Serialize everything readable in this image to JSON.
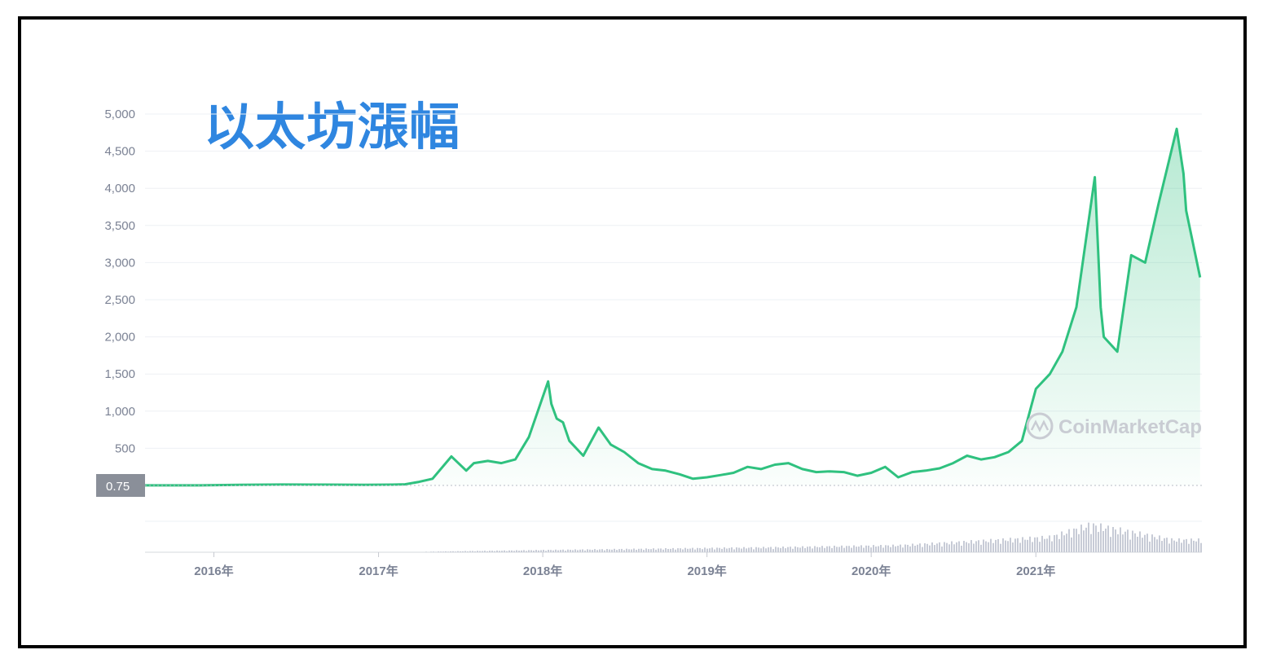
{
  "title": "以太坊漲幅",
  "watermark": "CoinMarketCap",
  "price_label": "0.75",
  "colors": {
    "line": "#2fc17f",
    "area_top": "#2fc17f",
    "volume": "#c7cbd6",
    "axis_text": "#7b8294",
    "grid": "#eef0f4",
    "title": "#2f86e0",
    "price_tag_bg": "#8a8f99"
  },
  "chart_data": {
    "type": "area",
    "title": "以太坊漲幅",
    "xlabel": "",
    "ylabel": "",
    "ylim": [
      0,
      5000
    ],
    "y_ticks": [
      "5,000",
      "4,500",
      "4,000",
      "3,500",
      "3,000",
      "2,500",
      "2,000",
      "1,500",
      "1,000",
      "500"
    ],
    "x_ticks": [
      "2016年",
      "2017年",
      "2018年",
      "2019年",
      "2020年",
      "2021年"
    ],
    "grid": true,
    "series": [
      {
        "x": [
          "2015-08",
          "2015-12",
          "2016-03",
          "2016-06",
          "2016-09",
          "2016-12",
          "2017-02",
          "2017-03",
          "2017-04",
          "2017-05",
          "2017-06-12",
          "2017-07-15",
          "2017-08",
          "2017-09",
          "2017-10",
          "2017-11",
          "2017-12",
          "2018-01-13",
          "2018-01-20",
          "2018-02",
          "2018-02-15",
          "2018-03",
          "2018-04",
          "2018-05-05",
          "2018-06",
          "2018-07",
          "2018-08",
          "2018-09",
          "2018-10",
          "2018-11",
          "2018-12",
          "2019-01",
          "2019-02",
          "2019-03",
          "2019-04",
          "2019-05",
          "2019-06",
          "2019-07",
          "2019-08",
          "2019-09",
          "2019-10",
          "2019-11",
          "2019-12",
          "2020-01",
          "2020-02",
          "2020-03",
          "2020-04",
          "2020-05",
          "2020-06",
          "2020-07",
          "2020-08",
          "2020-09",
          "2020-10",
          "2020-11",
          "2020-12",
          "2021-01",
          "2021-02",
          "2021-03",
          "2021-04",
          "2021-05-12",
          "2021-05-25",
          "2021-06",
          "2021-07",
          "2021-08",
          "2021-09",
          "2021-10",
          "2021-11-10",
          "2021-11-25",
          "2021-12",
          "2022-01"
        ],
        "values": [
          1,
          1,
          9,
          12,
          11,
          8,
          11,
          15,
          48,
          90,
          390,
          200,
          300,
          330,
          300,
          350,
          650,
          1400,
          1100,
          900,
          850,
          600,
          400,
          780,
          550,
          450,
          300,
          220,
          200,
          150,
          90,
          110,
          140,
          170,
          250,
          220,
          280,
          300,
          220,
          180,
          190,
          180,
          130,
          170,
          250,
          110,
          180,
          200,
          230,
          300,
          400,
          350,
          380,
          450,
          600,
          1300,
          1500,
          1800,
          2400,
          4150,
          2400,
          2000,
          1800,
          3100,
          3000,
          3800,
          4800,
          4200,
          3700,
          2800
        ]
      }
    ],
    "volume_series": [
      {
        "x": "2017-06",
        "value": 0.03
      },
      {
        "x": "2018-01",
        "value": 0.08
      },
      {
        "x": "2019-06",
        "value": 0.18
      },
      {
        "x": "2020-03",
        "value": 0.25
      },
      {
        "x": "2021-02",
        "value": 0.55
      },
      {
        "x": "2021-05",
        "value": 1.0
      },
      {
        "x": "2021-11",
        "value": 0.45
      }
    ]
  }
}
